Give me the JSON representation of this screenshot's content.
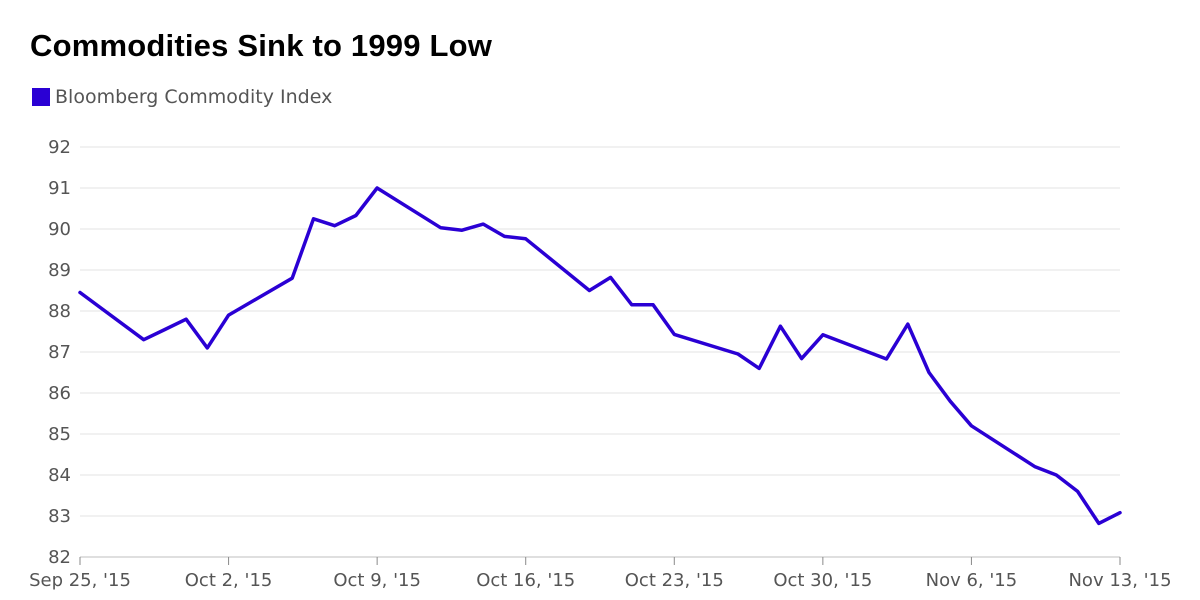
{
  "chart_data": {
    "type": "line",
    "title": "Commodities Sink to 1999 Low",
    "legend": "top-left",
    "grid": true,
    "ylim": [
      82,
      92
    ],
    "yticks": [
      "92",
      "91",
      "90",
      "89",
      "88",
      "87",
      "86",
      "85",
      "84",
      "83",
      "82"
    ],
    "xlim": [
      "2015-09-25",
      "2015-11-13"
    ],
    "xticks": [
      {
        "date": "2015-09-25",
        "label": "Sep 25, '15"
      },
      {
        "date": "2015-10-02",
        "label": "Oct 2, '15"
      },
      {
        "date": "2015-10-09",
        "label": "Oct 9, '15"
      },
      {
        "date": "2015-10-16",
        "label": "Oct 16, '15"
      },
      {
        "date": "2015-10-23",
        "label": "Oct 23, '15"
      },
      {
        "date": "2015-10-30",
        "label": "Oct 30, '15"
      },
      {
        "date": "2015-11-06",
        "label": "Nov 6, '15"
      },
      {
        "date": "2015-11-13",
        "label": "Nov 13, '15"
      }
    ],
    "series": [
      {
        "name": "Bloomberg Commodity Index",
        "color": "#2a00d4",
        "x": [
          "2015-09-25",
          "2015-09-28",
          "2015-09-29",
          "2015-09-30",
          "2015-10-01",
          "2015-10-02",
          "2015-10-05",
          "2015-10-06",
          "2015-10-07",
          "2015-10-08",
          "2015-10-09",
          "2015-10-12",
          "2015-10-13",
          "2015-10-14",
          "2015-10-15",
          "2015-10-16",
          "2015-10-19",
          "2015-10-20",
          "2015-10-21",
          "2015-10-22",
          "2015-10-23",
          "2015-10-26",
          "2015-10-27",
          "2015-10-28",
          "2015-10-29",
          "2015-10-30",
          "2015-11-02",
          "2015-11-03",
          "2015-11-04",
          "2015-11-05",
          "2015-11-06",
          "2015-11-09",
          "2015-11-10",
          "2015-11-11",
          "2015-11-12",
          "2015-11-13"
        ],
        "values": [
          88.45,
          87.3,
          87.55,
          87.8,
          87.1,
          87.9,
          88.8,
          90.25,
          90.08,
          90.33,
          91.0,
          90.03,
          89.97,
          90.12,
          89.82,
          89.76,
          88.5,
          88.82,
          88.15,
          88.15,
          87.43,
          86.95,
          86.6,
          87.63,
          86.84,
          87.42,
          86.83,
          87.68,
          86.5,
          85.8,
          85.2,
          84.2,
          84.0,
          83.6,
          82.82,
          83.08
        ]
      }
    ]
  }
}
